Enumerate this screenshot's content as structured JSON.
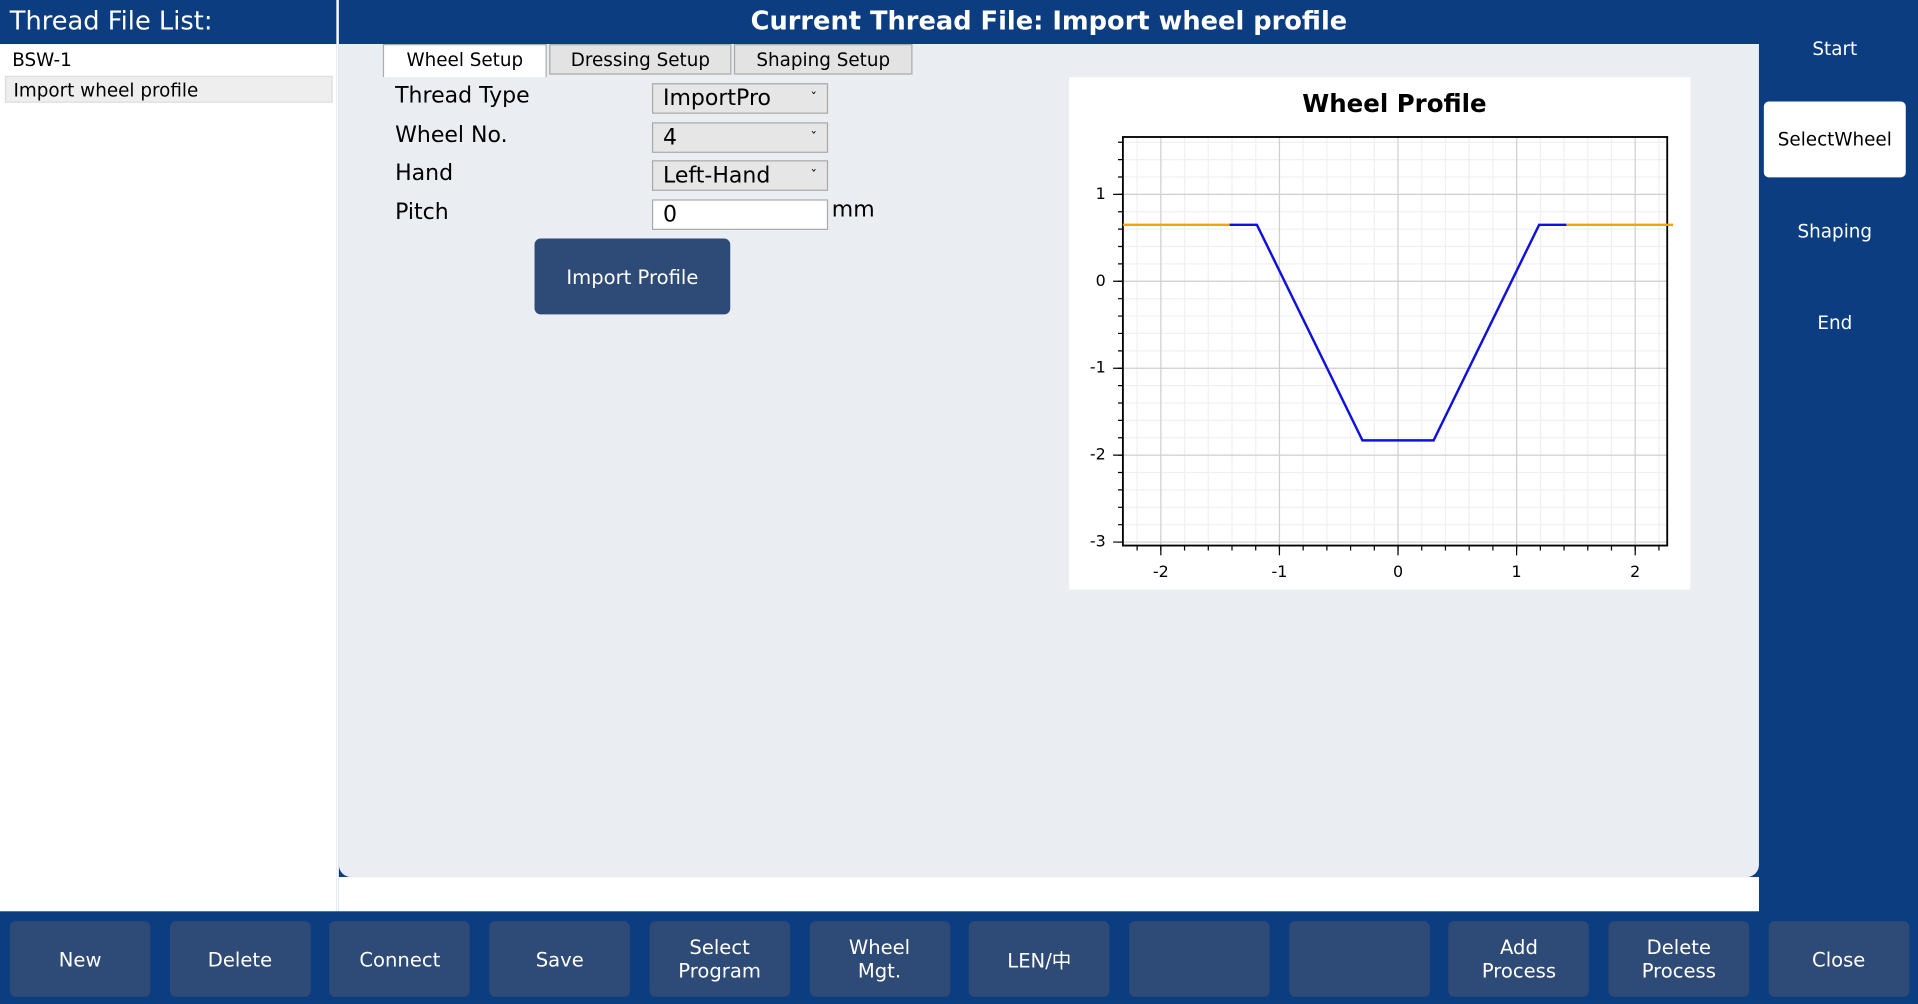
{
  "header": {
    "list_title": "Thread File List:",
    "title": "Current Thread File:  Import wheel profile"
  },
  "file_list": {
    "items": [
      "BSW-1",
      "Import wheel profile"
    ],
    "selected": 1
  },
  "tabs": {
    "items": [
      "Wheel Setup",
      "Dressing Setup",
      "Shaping Setup"
    ],
    "active": 0
  },
  "form": {
    "fields": [
      {
        "label": "Thread Type",
        "value": "ImportPro"
      },
      {
        "label": "Wheel No.",
        "value": "4"
      },
      {
        "label": "Hand",
        "value": "Left-Hand"
      },
      {
        "label": "Pitch",
        "value": "0",
        "unit": "mm"
      }
    ],
    "button": "Import Profile"
  },
  "chart_data": {
    "type": "line",
    "title": "Wheel Profile",
    "series": [
      {
        "color": "#f5a300",
        "x": [
          -2.32,
          -1.42
        ],
        "values": [
          0.65,
          0.65
        ]
      },
      {
        "color": "#1010e0",
        "x": [
          -1.42,
          -1.19,
          -0.3,
          0.3,
          1.19,
          1.42
        ],
        "values": [
          0.65,
          0.65,
          -1.83,
          -1.83,
          0.65,
          0.65
        ]
      },
      {
        "color": "#f5a300",
        "x": [
          1.42,
          2.32
        ],
        "values": [
          0.65,
          0.65
        ]
      }
    ],
    "xlim": [
      -2.32,
      2.27
    ],
    "ylim": [
      -3.04,
      1.66
    ],
    "xticks": [
      -2,
      -1,
      0,
      1,
      2
    ],
    "yticks": [
      1,
      0,
      -1,
      -2,
      -3
    ],
    "grid": true,
    "minor_divisions": 5
  },
  "side_menu": {
    "items": [
      "Start",
      "SelectWheel",
      "Shaping",
      "End"
    ],
    "selected": 1
  },
  "toolbar": [
    "New",
    "Delete",
    "Connect",
    "Save",
    "Select Program",
    "Wheel Mgt.",
    "LEN/中",
    null,
    null,
    "Add Process",
    "Delete Process",
    "Close"
  ]
}
